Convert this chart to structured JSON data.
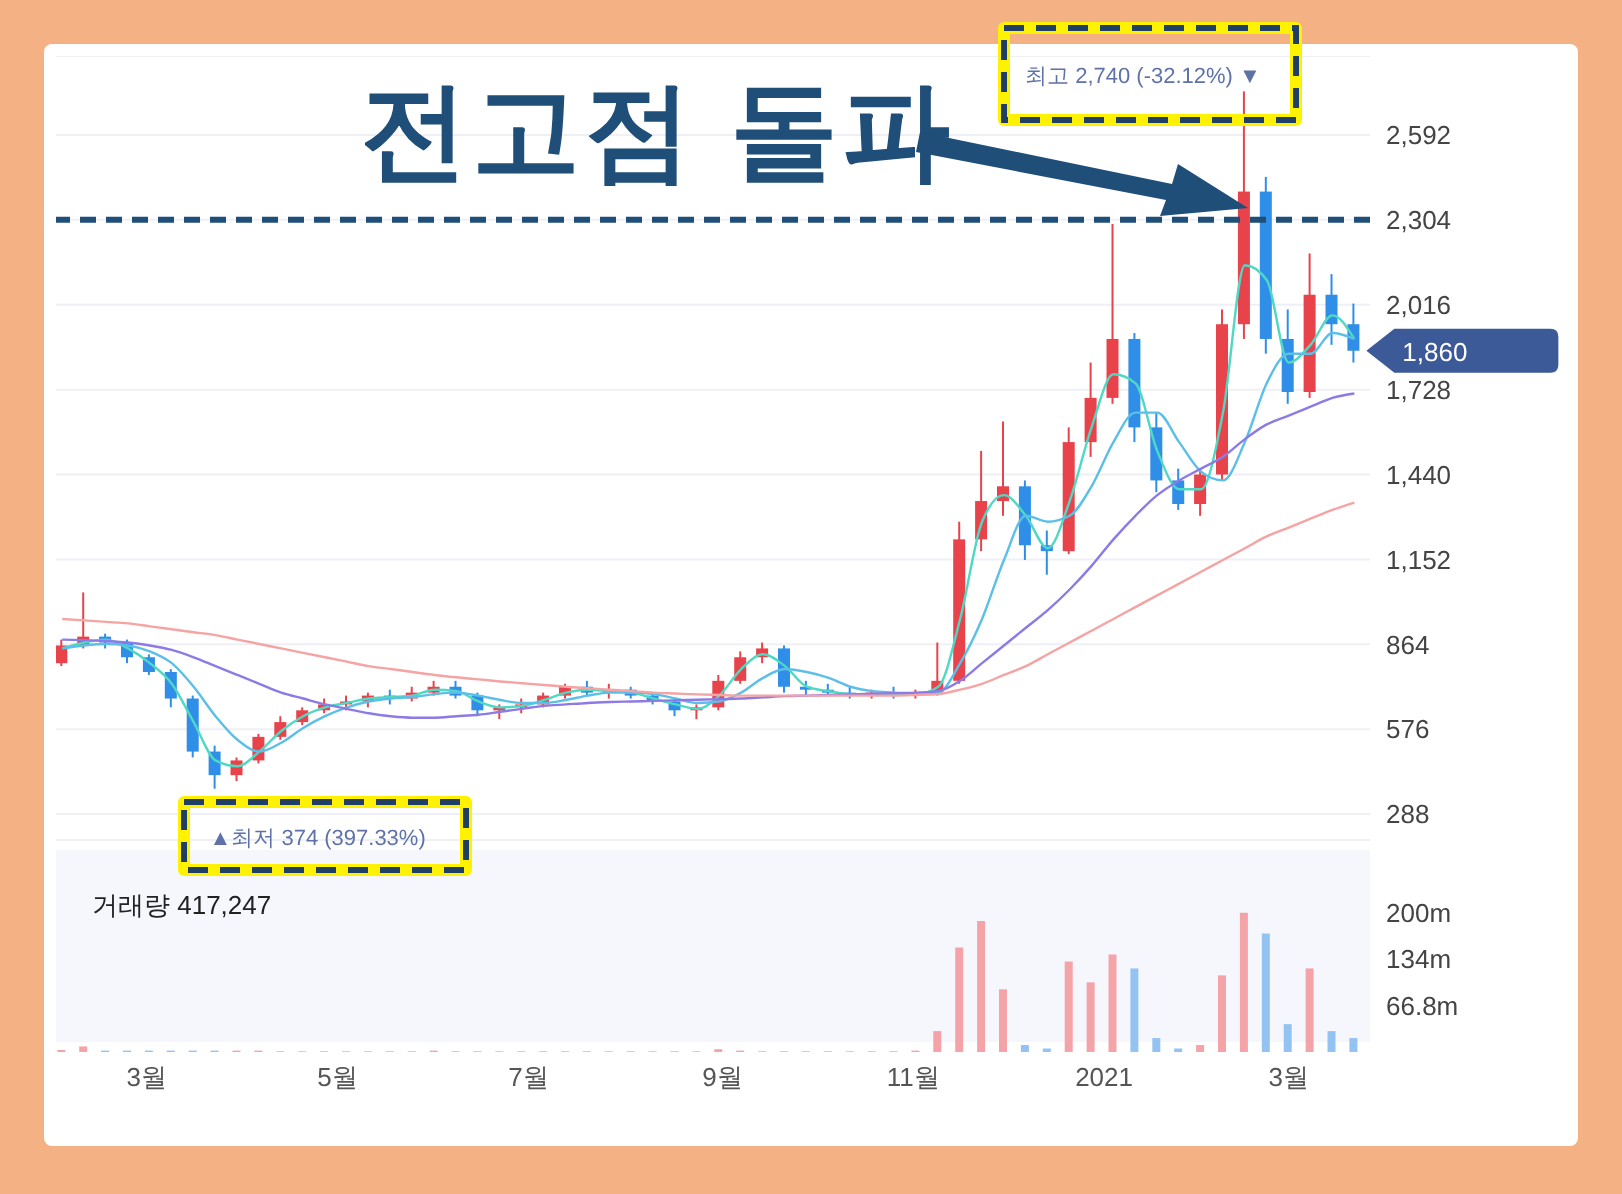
{
  "chart_data": [
    {
      "type": "candlestick",
      "title": "전고점 돌파",
      "x": [
        "2020-02-03",
        "2020-02-10",
        "2020-02-17",
        "2020-02-24",
        "2020-03-02",
        "2020-03-09",
        "2020-03-16",
        "2020-03-23",
        "2020-03-30",
        "2020-04-06",
        "2020-04-13",
        "2020-04-20",
        "2020-04-27",
        "2020-05-04",
        "2020-05-11",
        "2020-05-18",
        "2020-05-25",
        "2020-06-01",
        "2020-06-08",
        "2020-06-15",
        "2020-06-22",
        "2020-06-29",
        "2020-07-06",
        "2020-07-13",
        "2020-07-20",
        "2020-07-27",
        "2020-08-03",
        "2020-08-10",
        "2020-08-17",
        "2020-08-24",
        "2020-08-31",
        "2020-09-07",
        "2020-09-14",
        "2020-09-21",
        "2020-09-28",
        "2020-10-05",
        "2020-10-12",
        "2020-10-19",
        "2020-10-26",
        "2020-11-02",
        "2020-11-09",
        "2020-11-16",
        "2020-11-23",
        "2020-11-30",
        "2020-12-07",
        "2020-12-14",
        "2020-12-21",
        "2020-12-28",
        "2021-01-04",
        "2021-01-11",
        "2021-01-18",
        "2021-01-25",
        "2021-02-01",
        "2021-02-08",
        "2021-02-15",
        "2021-02-22",
        "2021-03-01",
        "2021-03-08",
        "2021-03-15",
        "2021-03-22"
      ],
      "ohlc": [
        [
          800,
          880,
          790,
          860
        ],
        [
          860,
          1040,
          850,
          890
        ],
        [
          890,
          900,
          850,
          870
        ],
        [
          870,
          880,
          800,
          820
        ],
        [
          820,
          830,
          760,
          770
        ],
        [
          770,
          780,
          650,
          680
        ],
        [
          680,
          690,
          480,
          500
        ],
        [
          500,
          520,
          374,
          420
        ],
        [
          420,
          480,
          400,
          470
        ],
        [
          470,
          560,
          460,
          550
        ],
        [
          550,
          620,
          540,
          600
        ],
        [
          600,
          650,
          590,
          640
        ],
        [
          640,
          680,
          630,
          660
        ],
        [
          660,
          690,
          640,
          670
        ],
        [
          670,
          700,
          650,
          690
        ],
        [
          690,
          710,
          660,
          680
        ],
        [
          680,
          720,
          670,
          700
        ],
        [
          700,
          740,
          690,
          720
        ],
        [
          720,
          740,
          680,
          690
        ],
        [
          690,
          700,
          620,
          640
        ],
        [
          640,
          660,
          610,
          650
        ],
        [
          650,
          680,
          630,
          660
        ],
        [
          660,
          700,
          650,
          690
        ],
        [
          690,
          730,
          680,
          720
        ],
        [
          720,
          740,
          690,
          700
        ],
        [
          700,
          730,
          680,
          710
        ],
        [
          710,
          720,
          680,
          690
        ],
        [
          690,
          700,
          660,
          670
        ],
        [
          670,
          680,
          620,
          640
        ],
        [
          640,
          660,
          610,
          650
        ],
        [
          650,
          760,
          640,
          740
        ],
        [
          740,
          840,
          730,
          820
        ],
        [
          820,
          870,
          800,
          850
        ],
        [
          850,
          860,
          700,
          720
        ],
        [
          720,
          740,
          690,
          710
        ],
        [
          710,
          730,
          690,
          700
        ],
        [
          700,
          720,
          680,
          690
        ],
        [
          690,
          710,
          680,
          700
        ],
        [
          700,
          720,
          680,
          690
        ],
        [
          690,
          710,
          680,
          700
        ],
        [
          700,
          870,
          690,
          740
        ],
        [
          740,
          1280,
          730,
          1220
        ],
        [
          1220,
          1520,
          1180,
          1350
        ],
        [
          1350,
          1620,
          1300,
          1400
        ],
        [
          1400,
          1420,
          1150,
          1200
        ],
        [
          1200,
          1250,
          1100,
          1180
        ],
        [
          1180,
          1600,
          1170,
          1550
        ],
        [
          1550,
          1820,
          1500,
          1700
        ],
        [
          1700,
          2290,
          1680,
          1900
        ],
        [
          1900,
          1920,
          1550,
          1600
        ],
        [
          1600,
          1650,
          1380,
          1420
        ],
        [
          1420,
          1460,
          1320,
          1340
        ],
        [
          1340,
          1460,
          1300,
          1440
        ],
        [
          1440,
          2000,
          1420,
          1950
        ],
        [
          1950,
          2740,
          1900,
          2400
        ],
        [
          2400,
          2450,
          1850,
          1900
        ],
        [
          1900,
          2000,
          1680,
          1720
        ],
        [
          1720,
          2190,
          1700,
          2050
        ],
        [
          2050,
          2120,
          1880,
          1950
        ],
        [
          1950,
          2020,
          1820,
          1860
        ]
      ],
      "colors": [
        "#e8434b",
        "#e8434b",
        "#2f8ee8",
        "#2f8ee8",
        "#2f8ee8",
        "#2f8ee8",
        "#2f8ee8",
        "#2f8ee8",
        "#e8434b",
        "#e8434b",
        "#e8434b",
        "#e8434b",
        "#e8434b",
        "#e8434b",
        "#e8434b",
        "#2f8ee8",
        "#e8434b",
        "#e8434b",
        "#2f8ee8",
        "#2f8ee8",
        "#e8434b",
        "#e8434b",
        "#e8434b",
        "#e8434b",
        "#2f8ee8",
        "#e8434b",
        "#2f8ee8",
        "#2f8ee8",
        "#2f8ee8",
        "#e8434b",
        "#e8434b",
        "#e8434b",
        "#e8434b",
        "#2f8ee8",
        "#2f8ee8",
        "#2f8ee8",
        "#2f8ee8",
        "#e8434b",
        "#2f8ee8",
        "#e8434b",
        "#e8434b",
        "#e8434b",
        "#e8434b",
        "#e8434b",
        "#2f8ee8",
        "#2f8ee8",
        "#e8434b",
        "#e8434b",
        "#e8434b",
        "#2f8ee8",
        "#2f8ee8",
        "#2f8ee8",
        "#e8434b",
        "#e8434b",
        "#e8434b",
        "#2f8ee8",
        "#2f8ee8",
        "#e8434b",
        "#2f8ee8",
        "#2f8ee8"
      ],
      "series": [
        {
          "type": "line",
          "color": "#4fd8c4",
          "values": [
            850,
            870,
            880,
            850,
            800,
            730,
            600,
            470,
            450,
            500,
            570,
            620,
            650,
            665,
            680,
            685,
            690,
            710,
            705,
            670,
            650,
            655,
            675,
            700,
            710,
            705,
            700,
            680,
            660,
            645,
            690,
            780,
            830,
            790,
            720,
            705,
            695,
            695,
            695,
            695,
            720,
            950,
            1280,
            1370,
            1300,
            1190,
            1350,
            1600,
            1780,
            1750,
            1520,
            1390,
            1390,
            1650,
            2150,
            2100,
            1820,
            1880,
            1980,
            1900
          ]
        },
        {
          "type": "line",
          "color": "#5bbfe8",
          "values": [
            850,
            860,
            865,
            860,
            840,
            800,
            720,
            620,
            540,
            500,
            530,
            580,
            620,
            650,
            670,
            680,
            685,
            695,
            700,
            690,
            675,
            665,
            665,
            675,
            690,
            700,
            700,
            695,
            680,
            665,
            670,
            700,
            750,
            780,
            770,
            750,
            720,
            705,
            700,
            695,
            700,
            800,
            950,
            1150,
            1300,
            1280,
            1300,
            1400,
            1550,
            1650,
            1650,
            1550,
            1450,
            1420,
            1550,
            1750,
            1850,
            1850,
            1920,
            1900
          ]
        },
        {
          "type": "line",
          "color": "#8c7be6",
          "values": [
            880,
            878,
            875,
            870,
            860,
            845,
            820,
            790,
            760,
            730,
            700,
            680,
            660,
            645,
            630,
            620,
            615,
            615,
            620,
            625,
            635,
            645,
            655,
            660,
            665,
            668,
            670,
            672,
            674,
            676,
            678,
            680,
            684,
            688,
            690,
            692,
            694,
            696,
            698,
            700,
            705,
            740,
            800,
            860,
            920,
            980,
            1050,
            1130,
            1220,
            1300,
            1370,
            1420,
            1460,
            1500,
            1560,
            1610,
            1640,
            1670,
            1700,
            1715
          ]
        },
        {
          "type": "line",
          "color": "#f5a3a3",
          "values": [
            950,
            945,
            940,
            935,
            925,
            915,
            905,
            895,
            880,
            865,
            850,
            835,
            820,
            805,
            790,
            780,
            770,
            760,
            752,
            745,
            738,
            732,
            726,
            720,
            715,
            710,
            705,
            700,
            697,
            694,
            692,
            690,
            690,
            690,
            690,
            690,
            690,
            690,
            690,
            692,
            695,
            710,
            730,
            760,
            790,
            830,
            870,
            910,
            950,
            990,
            1030,
            1070,
            1110,
            1150,
            1190,
            1230,
            1260,
            1290,
            1320,
            1345
          ]
        }
      ],
      "xlim": [
        "2020-02-01",
        "2021-03-27"
      ],
      "ylim": [
        200,
        2860
      ],
      "yticks": [
        288,
        576,
        864,
        {
          "value": 1152,
          "label": "1,152"
        },
        {
          "value": 1440,
          "label": "1,440"
        },
        {
          "value": 1728,
          "label": "1,728"
        },
        {
          "value": 2016,
          "label": "2,016"
        },
        {
          "value": 2304,
          "label": "2,304"
        },
        {
          "value": 2592,
          "label": "2,592"
        }
      ],
      "grid": "y",
      "tick_labels": "y",
      "ref_lines": [
        {
          "axis": "y",
          "value": 2304,
          "color": "#1f4e79",
          "line_style": "dashed"
        }
      ],
      "annotations": [
        {
          "text": "최고 2,740 (-32.12%) ▼",
          "x": "2021-02-15",
          "y": 2740
        },
        {
          "text": "▲최저 374 (397.33%)",
          "x": "2020-03-23",
          "y": 374
        },
        {
          "text": "1,860",
          "x": "2021-03-22",
          "y": 1860
        }
      ]
    },
    {
      "type": "bar",
      "x": [
        "2020-02-03",
        "2020-02-10",
        "2020-02-17",
        "2020-02-24",
        "2020-03-02",
        "2020-03-09",
        "2020-03-16",
        "2020-03-23",
        "2020-03-30",
        "2020-04-06",
        "2020-04-13",
        "2020-04-20",
        "2020-04-27",
        "2020-05-04",
        "2020-05-11",
        "2020-05-18",
        "2020-05-25",
        "2020-06-01",
        "2020-06-08",
        "2020-06-15",
        "2020-06-22",
        "2020-06-29",
        "2020-07-06",
        "2020-07-13",
        "2020-07-20",
        "2020-07-27",
        "2020-08-03",
        "2020-08-10",
        "2020-08-17",
        "2020-08-24",
        "2020-08-31",
        "2020-09-07",
        "2020-09-14",
        "2020-09-21",
        "2020-09-28",
        "2020-10-05",
        "2020-10-12",
        "2020-10-19",
        "2020-10-26",
        "2020-11-02",
        "2020-11-09",
        "2020-11-16",
        "2020-11-23",
        "2020-11-30",
        "2020-12-07",
        "2020-12-14",
        "2020-12-21",
        "2020-12-28",
        "2021-01-04",
        "2021-01-11",
        "2021-01-18",
        "2021-01-25",
        "2021-02-01",
        "2021-02-08",
        "2021-02-15",
        "2021-02-22",
        "2021-03-01",
        "2021-03-08",
        "2021-03-15",
        "2021-03-22"
      ],
      "values": [
        3,
        8,
        2,
        2,
        2,
        2,
        2,
        2,
        2,
        2,
        1,
        1,
        1,
        1,
        1,
        1,
        1,
        2,
        1,
        1,
        1,
        1,
        1,
        1,
        1,
        1,
        1,
        1,
        1,
        1,
        4,
        2,
        1,
        1,
        1,
        1,
        1,
        1,
        1,
        2,
        30,
        150,
        188,
        90,
        10,
        5,
        130,
        100,
        140,
        120,
        20,
        5,
        10,
        110,
        200,
        170,
        40,
        120,
        30,
        20
      ],
      "colors": [
        "#f4a3a8",
        "#f4a3a8",
        "#93c3f3",
        "#93c3f3",
        "#93c3f3",
        "#93c3f3",
        "#93c3f3",
        "#93c3f3",
        "#f4a3a8",
        "#f4a3a8",
        "#f4a3a8",
        "#f4a3a8",
        "#f4a3a8",
        "#f4a3a8",
        "#f4a3a8",
        "#93c3f3",
        "#f4a3a8",
        "#f4a3a8",
        "#93c3f3",
        "#93c3f3",
        "#f4a3a8",
        "#f4a3a8",
        "#f4a3a8",
        "#f4a3a8",
        "#93c3f3",
        "#f4a3a8",
        "#93c3f3",
        "#93c3f3",
        "#93c3f3",
        "#f4a3a8",
        "#f4a3a8",
        "#f4a3a8",
        "#f4a3a8",
        "#93c3f3",
        "#93c3f3",
        "#93c3f3",
        "#93c3f3",
        "#f4a3a8",
        "#93c3f3",
        "#f4a3a8",
        "#f4a3a8",
        "#f4a3a8",
        "#f4a3a8",
        "#f4a3a8",
        "#93c3f3",
        "#93c3f3",
        "#f4a3a8",
        "#f4a3a8",
        "#f4a3a8",
        "#93c3f3",
        "#93c3f3",
        "#93c3f3",
        "#f4a3a8",
        "#f4a3a8",
        "#f4a3a8",
        "#93c3f3",
        "#93c3f3",
        "#f4a3a8",
        "#93c3f3",
        "#93c3f3"
      ],
      "xlim": [
        "2020-02-01",
        "2021-03-27"
      ],
      "xticks": [
        {
          "value": "2020-03-01",
          "label": "3월"
        },
        {
          "value": "2020-05-01",
          "label": "5월"
        },
        {
          "value": "2020-07-01",
          "label": "7월"
        },
        {
          "value": "2020-09-01",
          "label": "9월"
        },
        {
          "value": "2020-11-01",
          "label": "11월"
        },
        {
          "value": "2021-01-01",
          "label": "2021"
        },
        {
          "value": "2021-03-01",
          "label": "3월"
        }
      ],
      "ylim": [
        0,
        290
      ],
      "yticks": [
        {
          "value": 66.8,
          "label": "66.8m"
        },
        {
          "value": 134,
          "label": "134m"
        },
        {
          "value": 200,
          "label": "200m"
        }
      ],
      "annotations": [
        "거래량 417,247"
      ]
    }
  ]
}
